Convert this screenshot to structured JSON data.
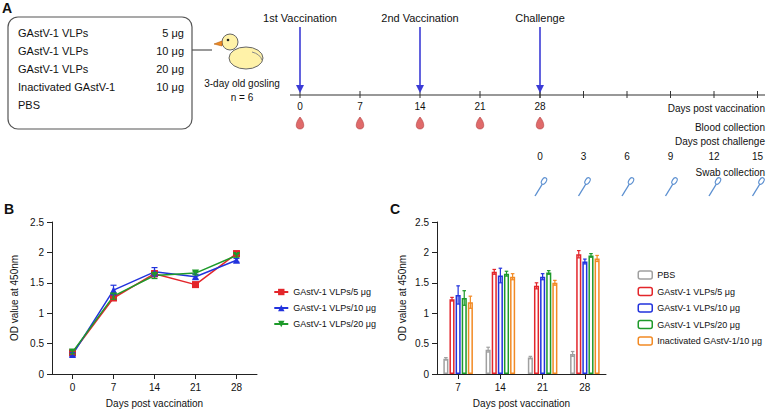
{
  "panel_a": {
    "panel": "A",
    "groups": [
      {
        "name": "GAstV-1 VLPs",
        "dose": "5 μg"
      },
      {
        "name": "GAstV-1 VLPs",
        "dose": "10 μg"
      },
      {
        "name": "GAstV-1 VLPs",
        "dose": "20 μg"
      },
      {
        "name": "Inactivated GAstV-1",
        "dose": "10 μg"
      },
      {
        "name": "PBS",
        "dose": null
      }
    ],
    "subject": "3-day old gosling",
    "n": "n = 6",
    "events": [
      {
        "label": "1st Vaccination",
        "day": 0
      },
      {
        "label": "2nd Vaccination",
        "day": 14
      },
      {
        "label": "Challenge",
        "day": 28
      }
    ],
    "vaccination_days": [
      0,
      7,
      14,
      21,
      28
    ],
    "vaccination_axis": "Days post vaccination",
    "blood_days": [
      0,
      7,
      14,
      21,
      28
    ],
    "blood_label": "Blood collection",
    "challenge_days": [
      0,
      3,
      6,
      9,
      12,
      15
    ],
    "challenge_axis": "Days post challenge",
    "swab_days": [
      0,
      3,
      6,
      9,
      12,
      15
    ],
    "swab_label": "Swab collection"
  },
  "chart_data": [
    {
      "panel": "B",
      "type": "line",
      "xlabel": "Days post vaccination",
      "ylabel": "OD value at 450nm",
      "categories": [
        "0",
        "7",
        "14",
        "21",
        "28"
      ],
      "ylim": [
        0,
        2.5
      ],
      "yticks": [
        0,
        0.5,
        1,
        1.5,
        2,
        2.5
      ],
      "grid": false,
      "legend": "right",
      "series": [
        {
          "name": "GAstV-1 VLPs/5 μg",
          "color": "#e3262b",
          "marker": "square",
          "values": [
            0.35,
            1.25,
            1.65,
            1.47,
            1.98
          ],
          "errors": [
            0.03,
            0.04,
            0.05,
            0.04,
            0.04
          ]
        },
        {
          "name": "GAstV-1 VLPs/10 μg",
          "color": "#2233dd",
          "marker": "triangle",
          "values": [
            0.32,
            1.38,
            1.68,
            1.6,
            1.87
          ],
          "errors": [
            0.03,
            0.08,
            0.07,
            0.04,
            0.03
          ]
        },
        {
          "name": "GAstV-1 VLPs/20 μg",
          "color": "#1e9a2a",
          "marker": "triangle-down",
          "values": [
            0.36,
            1.28,
            1.62,
            1.66,
            1.95
          ],
          "errors": [
            0.03,
            0.05,
            0.05,
            0.03,
            0.03
          ]
        }
      ]
    },
    {
      "panel": "C",
      "type": "bar",
      "xlabel": "Days post vaccination",
      "ylabel": "OD value at 450nm",
      "categories": [
        "7",
        "14",
        "21",
        "28"
      ],
      "ylim": [
        0,
        2.5
      ],
      "yticks": [
        0,
        0.5,
        1,
        1.5,
        2,
        2.5
      ],
      "grid": false,
      "legend": "right",
      "series": [
        {
          "name": "PBS",
          "color": "#a0a0a0",
          "values": [
            0.25,
            0.4,
            0.27,
            0.33
          ],
          "errors": [
            0.02,
            0.04,
            0.02,
            0.04
          ]
        },
        {
          "name": "GAstV-1 VLPs/5 μg",
          "color": "#e3262b",
          "values": [
            1.23,
            1.68,
            1.45,
            1.97
          ],
          "errors": [
            0.03,
            0.04,
            0.05,
            0.06
          ]
        },
        {
          "name": "GAstV-1 VLPs/10 μg",
          "color": "#2233dd",
          "values": [
            1.3,
            1.62,
            1.6,
            1.85
          ],
          "errors": [
            0.15,
            0.12,
            0.05,
            0.04
          ]
        },
        {
          "name": "GAstV-1 VLPs/20 μg",
          "color": "#1e9a2a",
          "values": [
            1.25,
            1.65,
            1.67,
            1.95
          ],
          "errors": [
            0.12,
            0.04,
            0.03,
            0.03
          ]
        },
        {
          "name": "Inactivated GAstV-1/10 μg",
          "color": "#f28a24",
          "values": [
            1.18,
            1.6,
            1.5,
            1.9
          ],
          "errors": [
            0.1,
            0.05,
            0.04,
            0.05
          ]
        }
      ]
    }
  ]
}
